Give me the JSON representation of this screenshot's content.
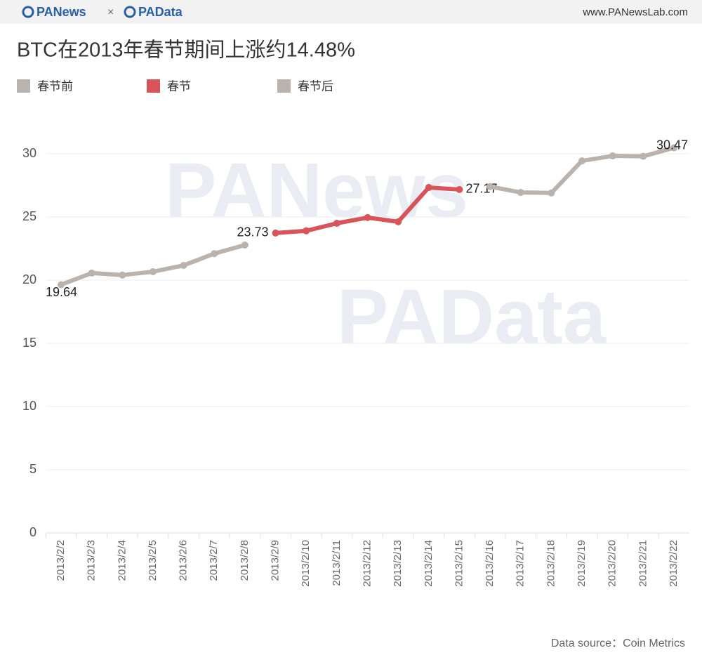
{
  "header": {
    "brand_left": "PANews",
    "separator": "×",
    "brand_right": "PAData",
    "site": "www.PANewsLab.com"
  },
  "watermark": [
    "PANews",
    "PAData"
  ],
  "chart_data": {
    "type": "line",
    "title": "BTC在2013年春节期间上涨约14.48%",
    "categories": [
      "2013/2/2",
      "2013/2/3",
      "2013/2/4",
      "2013/2/5",
      "2013/2/6",
      "2013/2/7",
      "2013/2/8",
      "2013/2/9",
      "2013/2/10",
      "2013/2/11",
      "2013/2/12",
      "2013/2/13",
      "2013/2/14",
      "2013/2/15",
      "2013/2/16",
      "2013/2/17",
      "2013/2/18",
      "2013/2/19",
      "2013/2/20",
      "2013/2/21",
      "2013/2/22"
    ],
    "series": [
      {
        "name": "春节前",
        "color": "#bab2ac",
        "values": [
          19.64,
          20.56,
          20.4,
          20.67,
          21.17,
          22.1,
          22.78,
          null,
          null,
          null,
          null,
          null,
          null,
          null,
          null,
          null,
          null,
          null,
          null,
          null,
          null
        ],
        "value_labels": [
          "19.64",
          null,
          null,
          null,
          null,
          null,
          null,
          null,
          null,
          null,
          null,
          null,
          null,
          null,
          null,
          null,
          null,
          null,
          null,
          null,
          null
        ]
      },
      {
        "name": "春节",
        "color": "#d9545a",
        "values": [
          null,
          null,
          null,
          null,
          null,
          null,
          null,
          23.73,
          23.9,
          24.5,
          24.95,
          24.62,
          27.33,
          27.17,
          null,
          null,
          null,
          null,
          null,
          null,
          null
        ],
        "value_labels": [
          null,
          null,
          null,
          null,
          null,
          null,
          null,
          "23.73",
          null,
          null,
          null,
          null,
          null,
          "27.17",
          null,
          null,
          null,
          null,
          null,
          null,
          null
        ]
      },
      {
        "name": "春节后",
        "color": "#bab2ac",
        "values": [
          null,
          null,
          null,
          null,
          null,
          null,
          null,
          null,
          null,
          null,
          null,
          null,
          null,
          null,
          27.4,
          26.94,
          26.9,
          29.44,
          29.83,
          29.8,
          30.47
        ],
        "value_labels": [
          null,
          null,
          null,
          null,
          null,
          null,
          null,
          null,
          null,
          null,
          null,
          null,
          null,
          null,
          null,
          null,
          null,
          null,
          null,
          null,
          "30.47"
        ]
      }
    ],
    "ylim": [
      0,
      33
    ],
    "yticks": [
      0,
      5,
      10,
      15,
      20,
      25,
      30
    ],
    "grid": true
  },
  "footer": {
    "source": "Data source：Coin Metrics"
  }
}
